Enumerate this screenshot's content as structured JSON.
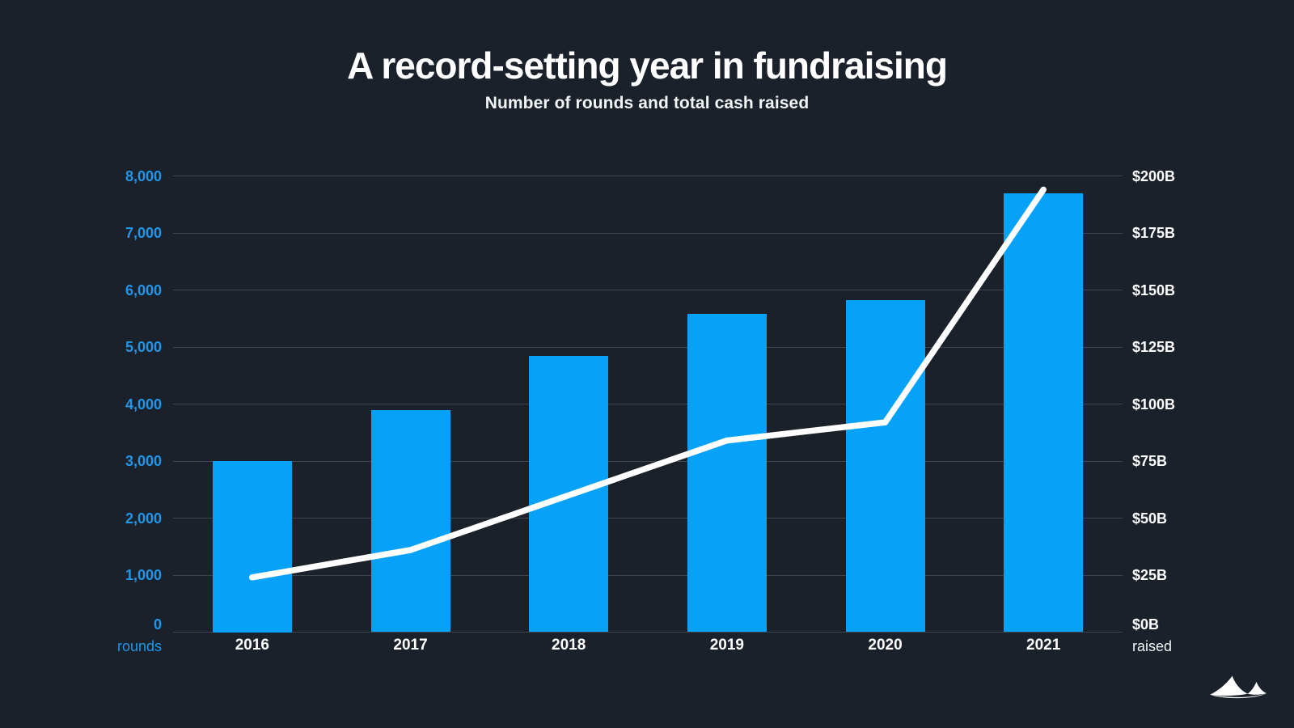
{
  "header": {
    "title": "A record-setting year in fundraising",
    "subtitle": "Number of rounds and total cash raised"
  },
  "chart_data": {
    "type": "bar",
    "subtype": "bar+line combo, dual axis",
    "title": "A record-setting year in fundraising",
    "subtitle": "Number of rounds and total cash raised",
    "categories": [
      "2016",
      "2017",
      "2018",
      "2019",
      "2020",
      "2021"
    ],
    "series": [
      {
        "name": "rounds",
        "type": "bar",
        "axis": "left",
        "color": "#06a1f9",
        "values": [
          3000,
          3900,
          4850,
          5580,
          5820,
          7690
        ]
      },
      {
        "name": "raised",
        "type": "line",
        "axis": "right",
        "color": "#ffffff",
        "unit": "$B",
        "values": [
          24,
          36,
          60,
          84,
          92,
          194
        ]
      }
    ],
    "left_axis": {
      "unit_label": "rounds",
      "min": 0,
      "max": 8000,
      "tick_step": 1000,
      "ticks": [
        "8,000",
        "7,000",
        "6,000",
        "5,000",
        "4,000",
        "3,000",
        "2,000",
        "1,000",
        "0"
      ],
      "color": "#2196e8"
    },
    "right_axis": {
      "unit_label": "raised",
      "min": 0,
      "max": 200,
      "tick_step": 25,
      "ticks": [
        "$200B",
        "$175B",
        "$150B",
        "$125B",
        "$100B",
        "$75B",
        "$50B",
        "$25B",
        "$0B"
      ],
      "color": "#ffffff"
    },
    "grid": true,
    "legend_position": "none"
  },
  "branding": {
    "logo": "twin-peaks-logo"
  },
  "colors": {
    "background": "#1b212b",
    "bar": "#06a1f9",
    "axis_blue": "#2196e8",
    "line": "#ffffff",
    "grid": "rgba(255,255,255,0.16)",
    "text": "#ffffff"
  }
}
